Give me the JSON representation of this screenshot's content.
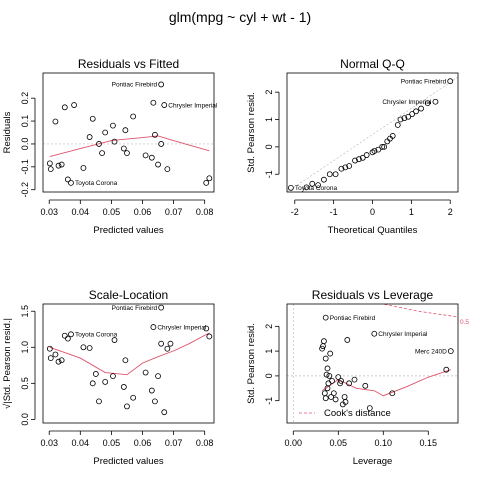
{
  "title": "glm(mpg ~ cyl + wt - 1)",
  "chart_data": [
    {
      "type": "scatter",
      "id": "rvf",
      "title": "Residuals vs Fitted",
      "xlabel": "Predicted values",
      "ylabel": "Residuals",
      "xlim": [
        0.028,
        0.083
      ],
      "ylim": [
        -0.21,
        0.31
      ],
      "xticks": [
        "0.03",
        "0.04",
        "0.05",
        "0.06",
        "0.07",
        "0.08"
      ],
      "xtick_values": [
        0.03,
        0.04,
        0.05,
        0.06,
        0.07,
        0.08
      ],
      "yticks": [
        "-0.2",
        "-0.1",
        "0.0",
        "0.1",
        "0.2"
      ],
      "ytick_values": [
        -0.2,
        -0.1,
        0.0,
        0.1,
        0.2
      ],
      "hline": 0,
      "points": [
        [
          0.0302,
          -0.085
        ],
        [
          0.0305,
          -0.11
        ],
        [
          0.032,
          0.098
        ],
        [
          0.033,
          -0.095
        ],
        [
          0.034,
          -0.09
        ],
        [
          0.035,
          0.16
        ],
        [
          0.036,
          -0.155
        ],
        [
          0.037,
          -0.17
        ],
        [
          0.038,
          0.17
        ],
        [
          0.041,
          -0.105
        ],
        [
          0.043,
          0.03
        ],
        [
          0.044,
          0.11
        ],
        [
          0.046,
          0.0
        ],
        [
          0.047,
          -0.04
        ],
        [
          0.048,
          0.05
        ],
        [
          0.0505,
          0.08
        ],
        [
          0.051,
          0.01
        ],
        [
          0.054,
          -0.02
        ],
        [
          0.0545,
          0.06
        ],
        [
          0.055,
          -0.04
        ],
        [
          0.057,
          0.12
        ],
        [
          0.061,
          -0.05
        ],
        [
          0.063,
          -0.06
        ],
        [
          0.0635,
          0.18
        ],
        [
          0.064,
          0.04
        ],
        [
          0.065,
          -0.09
        ],
        [
          0.066,
          0.26
        ],
        [
          0.066,
          0.0
        ],
        [
          0.067,
          0.17
        ],
        [
          0.068,
          -0.11
        ],
        [
          0.0805,
          -0.17
        ],
        [
          0.0815,
          -0.15
        ]
      ],
      "smooth": [
        [
          0.0302,
          -0.055
        ],
        [
          0.04,
          -0.02
        ],
        [
          0.05,
          0.015
        ],
        [
          0.06,
          0.028
        ],
        [
          0.065,
          0.035
        ],
        [
          0.07,
          0.015
        ],
        [
          0.075,
          -0.005
        ],
        [
          0.0815,
          -0.03
        ]
      ],
      "labels": [
        {
          "text": "Pontiac Firebird",
          "x": 0.066,
          "y": 0.26,
          "side": "left"
        },
        {
          "text": "Chrysler Imperial",
          "x": 0.067,
          "y": 0.17,
          "side": "right"
        },
        {
          "text": "Toyota Corona",
          "x": 0.037,
          "y": -0.17,
          "side": "right"
        }
      ]
    },
    {
      "type": "scatter",
      "id": "qq",
      "title": "Normal Q-Q",
      "xlabel": "Theoretical Quantiles",
      "ylabel": "Std. Pearson resid.",
      "xlim": [
        -2.2,
        2.2
      ],
      "ylim": [
        -1.65,
        2.7
      ],
      "xticks": [
        "-2",
        "-1",
        "0",
        "1",
        "2"
      ],
      "xtick_values": [
        -2,
        -1,
        0,
        1,
        2
      ],
      "yticks": [
        "-1",
        "0",
        "1",
        "2"
      ],
      "ytick_values": [
        -1,
        0,
        1,
        2
      ],
      "refline": [
        [
          -2.2,
          -1.65
        ],
        [
          2.2,
          2.55
        ]
      ],
      "points": [
        [
          -2.1,
          -1.5
        ],
        [
          -1.7,
          -1.48
        ],
        [
          -1.55,
          -1.35
        ],
        [
          -1.4,
          -1.4
        ],
        [
          -1.25,
          -1.2
        ],
        [
          -1.1,
          -1.0
        ],
        [
          -0.95,
          -1.0
        ],
        [
          -0.8,
          -0.8
        ],
        [
          -0.7,
          -0.75
        ],
        [
          -0.6,
          -0.7
        ],
        [
          -0.45,
          -0.5
        ],
        [
          -0.35,
          -0.45
        ],
        [
          -0.25,
          -0.4
        ],
        [
          -0.15,
          -0.3
        ],
        [
          0.0,
          -0.2
        ],
        [
          0.05,
          -0.15
        ],
        [
          0.15,
          -0.1
        ],
        [
          0.25,
          0.0
        ],
        [
          0.3,
          0.0
        ],
        [
          0.38,
          0.2
        ],
        [
          0.45,
          0.3
        ],
        [
          0.52,
          0.4
        ],
        [
          0.65,
          0.8
        ],
        [
          0.72,
          1.0
        ],
        [
          0.82,
          1.05
        ],
        [
          0.92,
          1.1
        ],
        [
          1.02,
          1.2
        ],
        [
          1.12,
          1.3
        ],
        [
          1.25,
          1.4
        ],
        [
          1.42,
          1.6
        ],
        [
          1.62,
          1.65
        ],
        [
          2.0,
          2.4
        ]
      ],
      "labels": [
        {
          "text": "Pontiac Firebird",
          "x": 2.0,
          "y": 2.4,
          "side": "left"
        },
        {
          "text": "Chrysler Imperial",
          "x": 1.62,
          "y": 1.65,
          "side": "left"
        },
        {
          "text": "Toyota Corona",
          "x": -2.1,
          "y": -1.5,
          "side": "right"
        }
      ]
    },
    {
      "type": "scatter",
      "id": "sl",
      "title": "Scale-Location",
      "xlabel": "Predicted values",
      "ylabel": "√|Std. Pearson resid.|",
      "xlim": [
        0.028,
        0.083
      ],
      "ylim": [
        -0.05,
        1.6
      ],
      "xticks": [
        "0.03",
        "0.04",
        "0.05",
        "0.06",
        "0.07",
        "0.08"
      ],
      "xtick_values": [
        0.03,
        0.04,
        0.05,
        0.06,
        0.07,
        0.08
      ],
      "yticks": [
        "0.0",
        "0.5",
        "1.0",
        "1.5"
      ],
      "ytick_values": [
        0.0,
        0.5,
        1.0,
        1.5
      ],
      "points": [
        [
          0.0302,
          0.98
        ],
        [
          0.0305,
          0.85
        ],
        [
          0.032,
          0.9
        ],
        [
          0.033,
          0.8
        ],
        [
          0.034,
          0.82
        ],
        [
          0.035,
          1.16
        ],
        [
          0.036,
          1.12
        ],
        [
          0.037,
          1.18
        ],
        [
          0.041,
          1.0
        ],
        [
          0.043,
          0.99
        ],
        [
          0.044,
          0.5
        ],
        [
          0.045,
          0.63
        ],
        [
          0.046,
          0.25
        ],
        [
          0.048,
          0.52
        ],
        [
          0.0505,
          0.6
        ],
        [
          0.051,
          1.1
        ],
        [
          0.054,
          0.45
        ],
        [
          0.0545,
          0.82
        ],
        [
          0.055,
          0.18
        ],
        [
          0.057,
          0.3
        ],
        [
          0.061,
          0.65
        ],
        [
          0.063,
          0.4
        ],
        [
          0.0635,
          1.28
        ],
        [
          0.064,
          0.25
        ],
        [
          0.065,
          0.6
        ],
        [
          0.066,
          1.55
        ],
        [
          0.066,
          1.05
        ],
        [
          0.067,
          0.1
        ],
        [
          0.068,
          0.98
        ],
        [
          0.069,
          1.05
        ],
        [
          0.0805,
          1.26
        ],
        [
          0.0815,
          1.15
        ]
      ],
      "smooth": [
        [
          0.0302,
          1.0
        ],
        [
          0.04,
          0.85
        ],
        [
          0.048,
          0.65
        ],
        [
          0.055,
          0.62
        ],
        [
          0.06,
          0.78
        ],
        [
          0.065,
          0.87
        ],
        [
          0.07,
          0.95
        ],
        [
          0.075,
          1.05
        ],
        [
          0.0815,
          1.2
        ]
      ],
      "labels": [
        {
          "text": "Pontiac Firebird",
          "x": 0.066,
          "y": 1.55,
          "side": "left"
        },
        {
          "text": "Chrysler Imperial",
          "x": 0.0635,
          "y": 1.28,
          "side": "right"
        },
        {
          "text": "Toyota Corona",
          "x": 0.037,
          "y": 1.18,
          "side": "right"
        }
      ]
    },
    {
      "type": "scatter",
      "id": "rvl",
      "title": "Residuals vs Leverage",
      "xlabel": "Leverage",
      "ylabel": "Std. Pearson resid.",
      "xlim": [
        -0.007,
        0.183
      ],
      "ylim": [
        -1.9,
        2.9
      ],
      "xticks": [
        "0.00",
        "0.05",
        "0.10",
        "0.15"
      ],
      "xtick_values": [
        0.0,
        0.05,
        0.1,
        0.15
      ],
      "yticks": [
        "-1",
        "0",
        "1",
        "2"
      ],
      "ytick_values": [
        -1,
        0,
        1,
        2
      ],
      "hline": 0,
      "vline": 0,
      "cooks_curves": [
        [
          [
            0.06,
            3.5
          ],
          [
            0.1,
            2.9
          ],
          [
            0.14,
            2.6
          ],
          [
            0.183,
            2.38
          ]
        ]
      ],
      "cooks_label": "0.5",
      "legend": "Cook's distance",
      "points": [
        [
          0.032,
          1.1
        ],
        [
          0.033,
          1.2
        ],
        [
          0.034,
          1.4
        ],
        [
          0.035,
          -0.7
        ],
        [
          0.036,
          -0.9
        ],
        [
          0.036,
          0.7
        ],
        [
          0.037,
          0.05
        ],
        [
          0.038,
          -0.5
        ],
        [
          0.038,
          0.3
        ],
        [
          0.039,
          -0.3
        ],
        [
          0.04,
          0.0
        ],
        [
          0.041,
          0.9
        ],
        [
          0.042,
          -0.85
        ],
        [
          0.043,
          -0.2
        ],
        [
          0.045,
          -0.7
        ],
        [
          0.047,
          -0.95
        ],
        [
          0.05,
          -0.05
        ],
        [
          0.052,
          -0.3
        ],
        [
          0.053,
          -0.2
        ],
        [
          0.055,
          -1.15
        ],
        [
          0.057,
          -0.85
        ],
        [
          0.058,
          -1.05
        ],
        [
          0.06,
          1.45
        ],
        [
          0.062,
          -0.3
        ],
        [
          0.068,
          -0.15
        ],
        [
          0.085,
          -1.3
        ],
        [
          0.09,
          1.7
        ],
        [
          0.11,
          -0.7
        ],
        [
          0.17,
          0.25
        ],
        [
          0.175,
          1.0
        ],
        [
          0.036,
          2.35
        ],
        [
          0.08,
          -0.4
        ]
      ],
      "smooth": [
        [
          0.032,
          -0.6
        ],
        [
          0.05,
          -0.15
        ],
        [
          0.07,
          -0.5
        ],
        [
          0.09,
          -0.6
        ],
        [
          0.1,
          -0.8
        ],
        [
          0.125,
          -0.45
        ],
        [
          0.15,
          -0.05
        ],
        [
          0.175,
          0.25
        ]
      ],
      "labels": [
        {
          "text": "Pontiac Firebird",
          "x": 0.036,
          "y": 2.35,
          "side": "right"
        },
        {
          "text": "Chrysler Imperial",
          "x": 0.09,
          "y": 1.7,
          "side": "right"
        },
        {
          "text": "Merc 240D",
          "x": 0.175,
          "y": 1.0,
          "side": "left"
        }
      ]
    }
  ]
}
